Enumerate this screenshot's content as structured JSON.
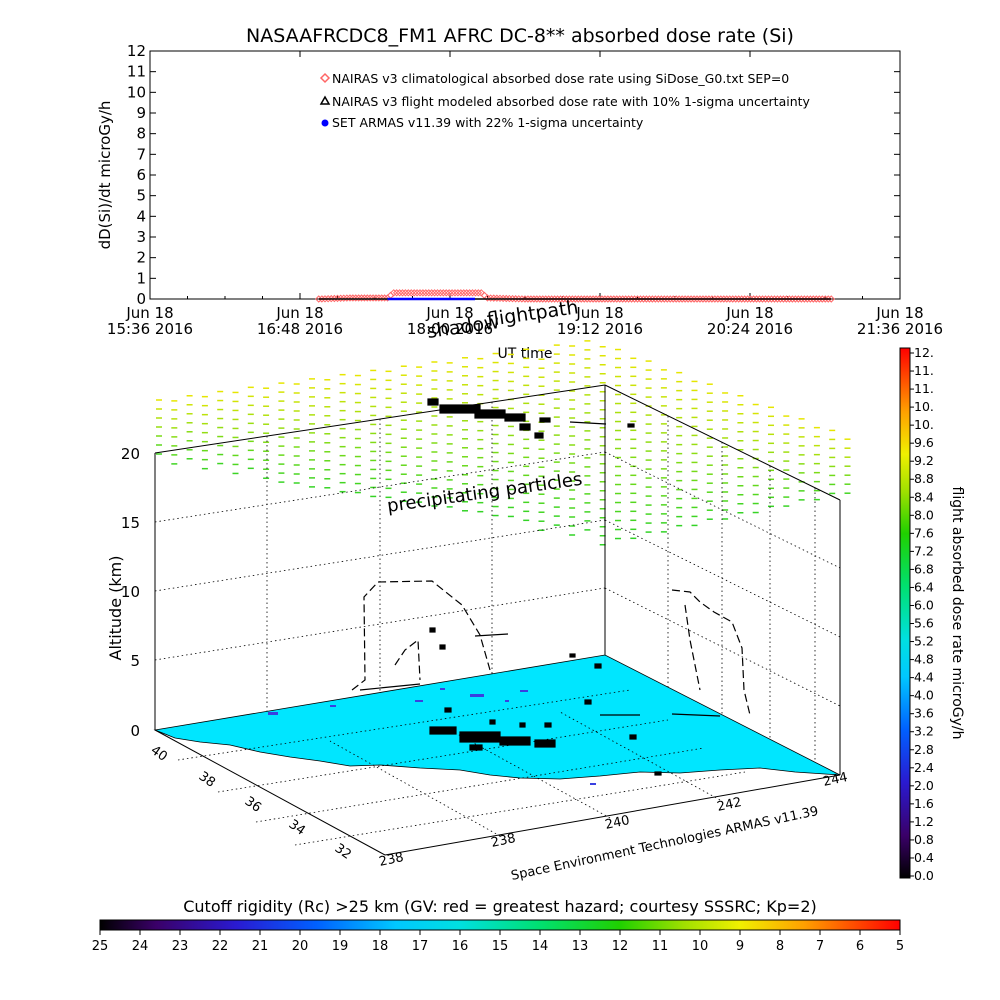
{
  "title": "NASAAFRCDC8_FM1 AFRC DC-8** absorbed dose rate (Si)",
  "chart_data": [
    {
      "type": "line",
      "title": "NASAAFRCDC8_FM1 AFRC DC-8** absorbed dose rate (Si)",
      "xlabel": "UT time",
      "ylabel": "dD(Si)/dt microGy/h",
      "ylim": [
        0,
        12
      ],
      "y_ticks": [
        "0",
        "1",
        "2",
        "3",
        "4",
        "5",
        "6",
        "7",
        "8",
        "9",
        "10",
        "11",
        "12"
      ],
      "x_ticks": [
        {
          "l1": "Jun 18",
          "l2": "15:36 2016"
        },
        {
          "l1": "Jun 18",
          "l2": "16:48 2016"
        },
        {
          "l1": "Jun 18",
          "l2": "18:00 2016"
        },
        {
          "l1": "Jun 18",
          "l2": "19:12 2016"
        },
        {
          "l1": "Jun 18",
          "l2": "20:24 2016"
        },
        {
          "l1": "Jun 18",
          "l2": "21:36 2016"
        }
      ],
      "x_hours": [
        15.6,
        16.8,
        18.0,
        19.2,
        20.4,
        21.6
      ],
      "legend_placement": "top-center",
      "series": [
        {
          "name": "NAIRAS v3 climatological absorbed dose rate using SiDose_G0.txt SEP=0",
          "marker": "diamond",
          "color": "#ff6666",
          "x": [
            16.95,
            17.2,
            17.5,
            17.55,
            17.9,
            18.25,
            18.3,
            18.6,
            19.5,
            20.5,
            21.05
          ],
          "y": [
            0.0,
            0.05,
            0.05,
            0.3,
            0.3,
            0.3,
            0.05,
            0.0,
            0.0,
            0.0,
            0.0
          ]
        },
        {
          "name": "NAIRAS v3 flight modeled absorbed dose rate with 10% 1-sigma uncertainty",
          "marker": "triangle",
          "color": "#000000",
          "x": [
            16.95,
            17.5,
            18.3,
            19.5,
            21.05
          ],
          "y": [
            0.0,
            0.0,
            0.0,
            0.0,
            0.0
          ]
        },
        {
          "name": "SET ARMAS v11.39 with 22% 1-sigma uncertainty",
          "marker": "circle",
          "color": "#0000ff",
          "x": [
            17.5,
            17.7,
            17.9,
            18.1,
            18.2
          ],
          "y": [
            0.0,
            0.0,
            0.0,
            0.0,
            0.0
          ]
        }
      ]
    },
    {
      "type": "heatmap",
      "title": "",
      "xlabel": "",
      "ylabel": "",
      "zlabel": "Altitude (km)",
      "z_ticks": [
        "0",
        "5",
        "10",
        "15",
        "20"
      ],
      "lat_ticks": [
        "40",
        "38",
        "36",
        "34",
        "32"
      ],
      "lon_ticks": [
        "238",
        "240",
        "242",
        "244"
      ],
      "annotations": [
        "shadow",
        "flightpath",
        "precipitating particles"
      ],
      "credit": "Space Environment Technologies ARMAS v11.39"
    },
    {
      "type": "heatmap",
      "title": "flight absorbed dose rate microGy/h",
      "colorbar_ticks": [
        "0.0",
        "0.4",
        "0.8",
        "1.2",
        "1.6",
        "2.0",
        "2.4",
        "2.8",
        "3.2",
        "3.6",
        "4.0",
        "4.4",
        "4.8",
        "5.2",
        "5.6",
        "6.0",
        "6.4",
        "6.8",
        "7.2",
        "7.6",
        "8.0",
        "8.4",
        "8.8",
        "9.2",
        "9.6",
        "10.",
        "10.",
        "11.",
        "11.",
        "12."
      ],
      "range": [
        0,
        12
      ]
    },
    {
      "type": "heatmap",
      "title": "Cutoff rigidity (Rc) >25 km (GV: red = greatest hazard; courtesy SSSRC; Kp=2)",
      "colorbar_ticks": [
        "25",
        "24",
        "23",
        "22",
        "21",
        "20",
        "19",
        "18",
        "17",
        "16",
        "15",
        "14",
        "13",
        "12",
        "11",
        "10",
        "9",
        "8",
        "7",
        "6",
        "5"
      ],
      "range": [
        25,
        5
      ]
    }
  ],
  "colors": {
    "ground": "#00e6ff",
    "coast_fill": "#00e6ff",
    "accent_red": "#ff0000"
  }
}
